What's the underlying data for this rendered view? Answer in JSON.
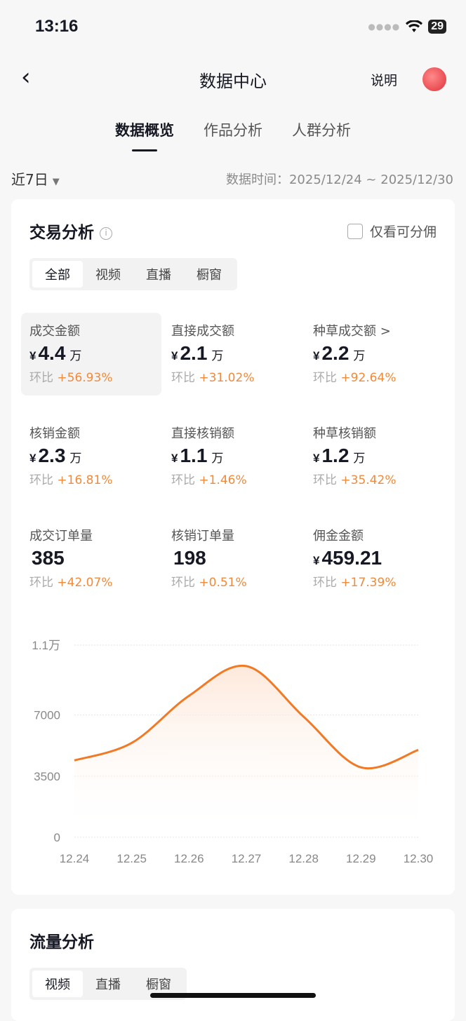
{
  "status": {
    "time": "13:16",
    "battery": "29"
  },
  "nav": {
    "title": "数据中心",
    "explain": "说明"
  },
  "tabs": [
    {
      "label": "数据概览",
      "active": true
    },
    {
      "label": "作品分析"
    },
    {
      "label": "人群分析"
    }
  ],
  "filter": {
    "range": "近7日",
    "data_time": "数据时间：2025/12/24 ~ 2025/12/30"
  },
  "trade": {
    "title": "交易分析",
    "only_commission": "仅看可分佣",
    "segments": [
      "全部",
      "视频",
      "直播",
      "橱窗"
    ],
    "metrics": [
      {
        "label": "成交金额",
        "currency": "¥",
        "value": "4.4",
        "unit": "万",
        "change_label": "环比",
        "change": "+56.93%",
        "selected": true
      },
      {
        "label": "直接成交额",
        "currency": "¥",
        "value": "2.1",
        "unit": "万",
        "change_label": "环比",
        "change": "+31.02%"
      },
      {
        "label": "种草成交额 >",
        "currency": "¥",
        "value": "2.2",
        "unit": "万",
        "change_label": "环比",
        "change": "+92.64%"
      },
      {
        "label": "核销金额",
        "currency": "¥",
        "value": "2.3",
        "unit": "万",
        "change_label": "环比",
        "change": "+16.81%"
      },
      {
        "label": "直接核销额",
        "currency": "¥",
        "value": "1.1",
        "unit": "万",
        "change_label": "环比",
        "change": "+1.46%"
      },
      {
        "label": "种草核销额",
        "currency": "¥",
        "value": "1.2",
        "unit": "万",
        "change_label": "环比",
        "change": "+35.42%"
      },
      {
        "label": "成交订单量",
        "currency": "",
        "value": "385",
        "unit": "",
        "change_label": "环比",
        "change": "+42.07%"
      },
      {
        "label": "核销订单量",
        "currency": "",
        "value": "198",
        "unit": "",
        "change_label": "环比",
        "change": "+0.51%"
      },
      {
        "label": "佣金金额",
        "currency": "¥",
        "value": "459.21",
        "unit": "",
        "change_label": "环比",
        "change": "+17.39%"
      }
    ]
  },
  "chart_data": {
    "type": "area",
    "categories": [
      "12.24",
      "12.25",
      "12.26",
      "12.27",
      "12.28",
      "12.29",
      "12.30"
    ],
    "values": [
      4400,
      5400,
      8100,
      9800,
      6900,
      4000,
      5000
    ],
    "yticks": [
      0,
      3500,
      7000,
      11000
    ],
    "ytick_labels": [
      "0",
      "3500",
      "7000",
      "1.1万"
    ],
    "ylim": [
      0,
      11000
    ],
    "grid": true,
    "color": "#f07a26"
  },
  "traffic": {
    "title": "流量分析",
    "segments": [
      "视频",
      "直播",
      "橱窗"
    ]
  }
}
